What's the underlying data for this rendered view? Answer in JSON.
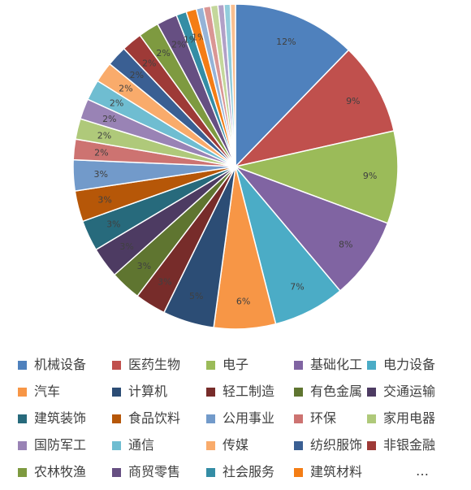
{
  "chart_data": {
    "type": "pie",
    "title": "",
    "slices": [
      {
        "name": "机械设备",
        "value": 12,
        "label": "12%",
        "color": "#4F81BD"
      },
      {
        "name": "医药生物",
        "value": 9,
        "label": "9%",
        "color": "#C0504D"
      },
      {
        "name": "电子",
        "value": 9,
        "label": "9%",
        "color": "#9BBB59"
      },
      {
        "name": "基础化工",
        "value": 8,
        "label": "8%",
        "color": "#8064A2"
      },
      {
        "name": "电力设备",
        "value": 7,
        "label": "7%",
        "color": "#4BACC6"
      },
      {
        "name": "汽车",
        "value": 6,
        "label": "6%",
        "color": "#F79646"
      },
      {
        "name": "计算机",
        "value": 5,
        "label": "5%",
        "color": "#2C4D75"
      },
      {
        "name": "轻工制造",
        "value": 3,
        "label": "3%",
        "color": "#772C2A"
      },
      {
        "name": "有色金属",
        "value": 3,
        "label": "3%",
        "color": "#5F7530"
      },
      {
        "name": "交通运输",
        "value": 3,
        "label": "3%",
        "color": "#4D3B62"
      },
      {
        "name": "建筑装饰",
        "value": 3,
        "label": "3%",
        "color": "#276A7C"
      },
      {
        "name": "食品饮料",
        "value": 3,
        "label": "3%",
        "color": "#B65708"
      },
      {
        "name": "公用事业",
        "value": 3,
        "label": "3%",
        "color": "#729ACA"
      },
      {
        "name": "环保",
        "value": 2,
        "label": "2%",
        "color": "#CD7371"
      },
      {
        "name": "家用电器",
        "value": 2,
        "label": "2%",
        "color": "#AFC97A"
      },
      {
        "name": "国防军工",
        "value": 2,
        "label": "2%",
        "color": "#9983B5"
      },
      {
        "name": "通信",
        "value": 2,
        "label": "2%",
        "color": "#6FBDD1"
      },
      {
        "name": "传媒",
        "value": 2,
        "label": "2%",
        "color": "#F9AB6B"
      },
      {
        "name": "纺织服饰",
        "value": 2,
        "label": "2%",
        "color": "#3A5F93"
      },
      {
        "name": "非银金融",
        "value": 2,
        "label": "2%",
        "color": "#9E3A37"
      },
      {
        "name": "农林牧渔",
        "value": 2,
        "label": "2%",
        "color": "#7E9A40"
      },
      {
        "name": "商贸零售",
        "value": 2,
        "label": "2%",
        "color": "#664F82"
      },
      {
        "name": "社会服务",
        "value": 1,
        "label": "1%",
        "color": "#348DA5"
      },
      {
        "name": "建筑材料",
        "value": 1,
        "label": "1%",
        "color": "#F47D15"
      }
    ],
    "other_slices": [
      {
        "value": 0.7,
        "color": "#95B3D7"
      },
      {
        "value": 0.7,
        "color": "#DA9694"
      },
      {
        "value": 0.7,
        "color": "#C4D79B"
      },
      {
        "value": 0.6,
        "color": "#B1A0C7"
      },
      {
        "value": 0.6,
        "color": "#92CDDC"
      },
      {
        "value": 0.5,
        "color": "#FABF8F"
      }
    ],
    "legend_position": "bottom",
    "legend_more": "…"
  }
}
